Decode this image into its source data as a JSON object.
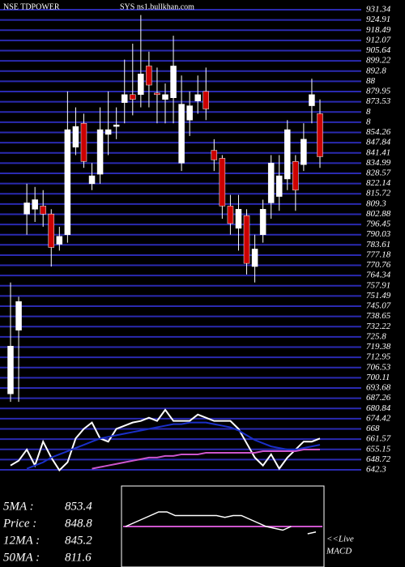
{
  "chart_data": {
    "type": "candlestick",
    "title": "NSE TDPOWER",
    "subtitle": "SYS ns1.bullkhan.com",
    "open": [
      690,
      730,
      803,
      806,
      808,
      803,
      784,
      790,
      845,
      860,
      822,
      828,
      853,
      858,
      873,
      878,
      878,
      896,
      879,
      875,
      876,
      835,
      862,
      874,
      880,
      843,
      838,
      808,
      794,
      802,
      770,
      790,
      810,
      814,
      825,
      836,
      834,
      871,
      866
    ],
    "high": [
      760,
      751,
      822,
      820,
      818,
      806,
      795,
      880,
      870,
      866,
      835,
      870,
      880,
      870,
      900,
      910,
      928,
      905,
      895,
      885,
      915,
      890,
      880,
      890,
      895,
      850,
      840,
      815,
      815,
      806,
      790,
      812,
      840,
      840,
      862,
      840,
      860,
      888,
      875
    ],
    "low": [
      685,
      685,
      790,
      798,
      795,
      770,
      780,
      785,
      840,
      832,
      818,
      822,
      840,
      850,
      860,
      865,
      870,
      870,
      860,
      860,
      860,
      830,
      852,
      866,
      862,
      830,
      800,
      790,
      780,
      765,
      760,
      785,
      800,
      805,
      818,
      805,
      830,
      860,
      832
    ],
    "close": [
      720,
      748,
      810,
      812,
      803,
      782,
      789,
      856,
      858,
      836,
      827,
      856,
      856,
      859,
      878,
      875,
      891,
      884,
      878,
      878,
      896,
      872,
      871,
      878,
      869,
      837,
      808,
      797,
      806,
      772,
      781,
      806,
      835,
      827,
      856,
      818,
      850,
      878,
      839
    ],
    "up_color": "#ffffff",
    "down_color": "#cc0000",
    "lines": [
      {
        "color": "#ffffff",
        "values": [
          645,
          648,
          655,
          645,
          660,
          650,
          642,
          647,
          662,
          668,
          672,
          662,
          660,
          668,
          670,
          672,
          673,
          675,
          673,
          680,
          673,
          673,
          673,
          677,
          675,
          673,
          673,
          673,
          668,
          659,
          650,
          645,
          652,
          643,
          650,
          655,
          660,
          660,
          662
        ]
      },
      {
        "color": "#1a2fc8",
        "values": [
          null,
          null,
          643,
          645,
          647,
          650,
          652,
          654,
          656,
          658,
          660,
          662,
          663,
          664,
          665,
          666,
          667,
          668,
          669,
          670,
          671,
          671,
          672,
          672,
          672,
          671,
          670,
          669,
          667,
          664,
          661,
          659,
          657,
          656,
          655,
          655,
          656,
          657,
          658
        ]
      },
      {
        "color": "#cc55cc",
        "values": [
          null,
          null,
          null,
          null,
          null,
          null,
          null,
          null,
          null,
          null,
          643,
          644,
          645,
          646,
          647,
          648,
          649,
          650,
          650,
          651,
          651,
          652,
          652,
          652,
          653,
          653,
          653,
          653,
          653,
          653,
          653,
          654,
          654,
          654,
          654,
          654,
          655,
          655,
          655
        ]
      }
    ],
    "ylim": [
      642.3,
      931.34
    ],
    "yticks": [
      931.34,
      924.91,
      918.49,
      912.07,
      905.64,
      899.22,
      892.8,
      {
        "value": 886.37,
        "label": "88"
      },
      879.95,
      873.53,
      {
        "value": 867.1,
        "label": "8"
      },
      {
        "value": 860.68,
        "label": "8"
      },
      854.26,
      847.84,
      841.41,
      834.99,
      828.57,
      822.14,
      815.72,
      809.3,
      802.88,
      796.45,
      790.03,
      783.61,
      777.18,
      770.76,
      764.34,
      757.91,
      751.49,
      745.07,
      738.65,
      732.22,
      725.8,
      719.38,
      712.95,
      706.53,
      700.11,
      693.68,
      687.26,
      680.84,
      674.42,
      668,
      661.57,
      655.15,
      648.72,
      642.3
    ],
    "grid_color": "#2a2ab0",
    "legend": [
      {
        "label": "5MA :",
        "value": 853.4
      },
      {
        "label": "Price :",
        "value": 848.8
      },
      {
        "label": "12MA :",
        "value": 845.2
      },
      {
        "label": "50MA :",
        "value": 811.6
      }
    ],
    "macd": {
      "label": "<<Live",
      "title": "MACD",
      "ylim": [
        -10,
        10
      ],
      "values": [
        0,
        1,
        2,
        3,
        4,
        4,
        3,
        3,
        3,
        3,
        3,
        3,
        2.5,
        3,
        3,
        2,
        1,
        0,
        -0.5,
        -1,
        0,
        null,
        -2,
        -1.5
      ],
      "signal": 0,
      "color": "#ffffff",
      "signal_color": "#cc55cc"
    }
  }
}
